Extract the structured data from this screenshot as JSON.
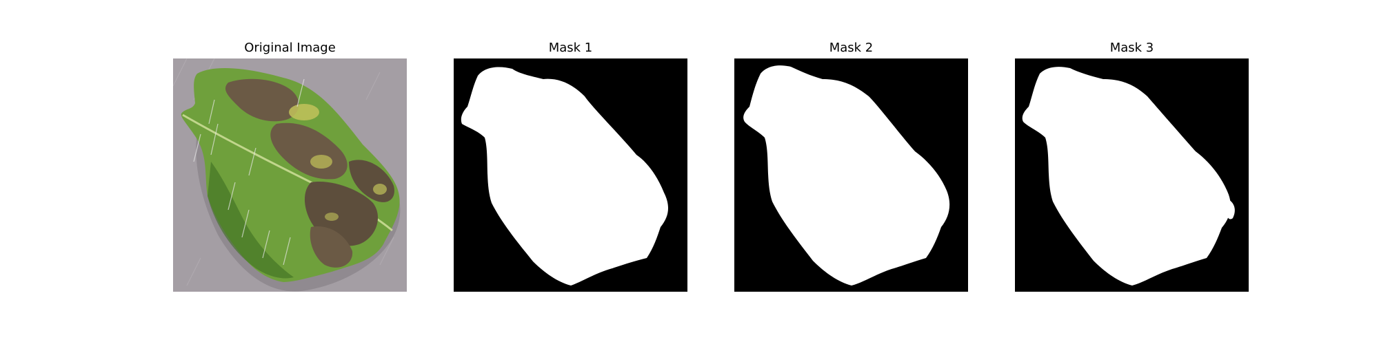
{
  "panels": [
    {
      "title": "Original Image",
      "kind": "photo"
    },
    {
      "title": "Mask 1",
      "kind": "mask"
    },
    {
      "title": "Mask 2",
      "kind": "mask"
    },
    {
      "title": "Mask 3",
      "kind": "mask"
    }
  ],
  "colors": {
    "background": "#ffffff",
    "mask_background": "#000000",
    "mask_foreground": "#ffffff",
    "photo_surface": "#a49ea4",
    "leaf_green": "#6fa03c",
    "leaf_dark_green": "#3e6e22",
    "lesion_brown": "#6b5a45",
    "lesion_yellow": "#c2c25a"
  },
  "icons": {
    "photo": "leaf-photo-icon",
    "mask": "segmentation-mask-icon"
  }
}
